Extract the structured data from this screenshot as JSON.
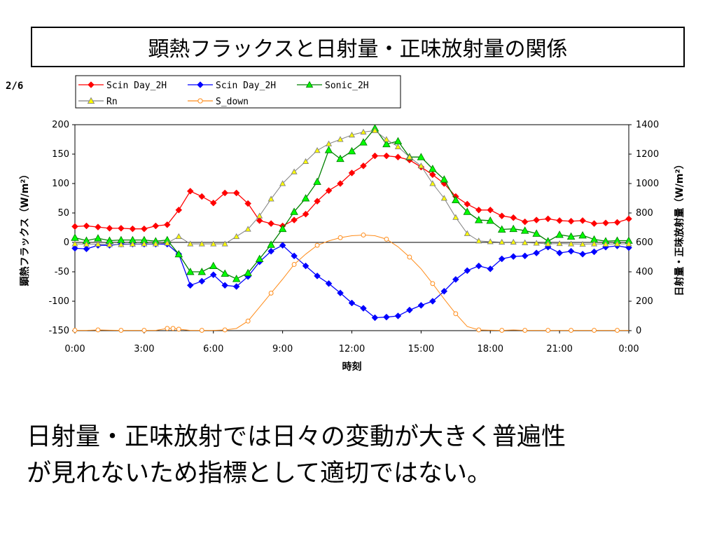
{
  "slide": {
    "title": "顕熱フラックスと日射量・正味放射量の関係",
    "page": "2/6",
    "caption_line1": "日射量・正味放射では日々の変動が大きく普遍性",
    "caption_line2": "が見れないため指標として適切ではない。"
  },
  "chart_data": {
    "type": "line",
    "xlabel": "時刻",
    "ylabel_left": "顕熱フラックス（W/m²）",
    "ylabel_right": "日射量・正味放射量（W/m²）",
    "x_ticks": [
      "0:00",
      "3:00",
      "6:00",
      "9:00",
      "12:00",
      "15:00",
      "18:00",
      "21:00",
      "0:00"
    ],
    "xlim_hours": [
      0,
      24
    ],
    "ylim_left": [
      -150,
      200
    ],
    "yticks_left": [
      200,
      150,
      100,
      50,
      0,
      -50,
      -100,
      -150
    ],
    "ylim_right": [
      0,
      1400
    ],
    "yticks_right": [
      1400,
      1200,
      1000,
      800,
      600,
      400,
      200,
      0
    ],
    "legend_position": "top",
    "series": [
      {
        "name": "Scin Day_2H",
        "axis": "left",
        "color": "#ff0000",
        "marker": "diamond",
        "x": [
          0,
          0.5,
          1,
          1.5,
          2,
          2.5,
          3,
          3.5,
          4,
          4.5,
          5,
          5.5,
          6,
          6.5,
          7,
          7.5,
          8,
          8.5,
          9,
          9.5,
          10,
          10.5,
          11,
          11.5,
          12,
          12.5,
          13,
          13.5,
          14,
          14.5,
          15,
          15.5,
          16,
          16.5,
          17,
          17.5,
          18,
          18.5,
          19,
          19.5,
          20,
          20.5,
          21,
          21.5,
          22,
          22.5,
          23,
          23.5,
          24
        ],
        "y": [
          27,
          28,
          26,
          24,
          24,
          23,
          23,
          28,
          30,
          55,
          87,
          78,
          67,
          84,
          84,
          66,
          37,
          32,
          28,
          38,
          48,
          70,
          88,
          100,
          118,
          130,
          147,
          147,
          145,
          140,
          128,
          115,
          100,
          78,
          65,
          55,
          55,
          45,
          42,
          35,
          38,
          40,
          37,
          36,
          37,
          32,
          33,
          34,
          40
        ]
      },
      {
        "name": "Scin Day_2H",
        "axis": "left",
        "color": "#0000ff",
        "marker": "diamond",
        "x": [
          0,
          0.5,
          1,
          1.5,
          2,
          2.5,
          3,
          3.5,
          4,
          4.5,
          5,
          5.5,
          6,
          6.5,
          7,
          7.5,
          8,
          8.5,
          9,
          9.5,
          10,
          10.5,
          11,
          11.5,
          12,
          12.5,
          13,
          13.5,
          14,
          14.5,
          15,
          15.5,
          16,
          16.5,
          17,
          17.5,
          18,
          18.5,
          19,
          19.5,
          20,
          20.5,
          21,
          21.5,
          22,
          22.5,
          23,
          23.5,
          24
        ],
        "y": [
          -10,
          -11,
          -5,
          -5,
          -3,
          -3,
          -3,
          -3,
          -3,
          -20,
          -73,
          -66,
          -55,
          -73,
          -75,
          -58,
          -33,
          -15,
          -5,
          -23,
          -40,
          -57,
          -70,
          -86,
          -103,
          -112,
          -128,
          -127,
          -125,
          -115,
          -107,
          -100,
          -83,
          -63,
          -48,
          -40,
          -45,
          -28,
          -24,
          -23,
          -18,
          -8,
          -18,
          -15,
          -20,
          -16,
          -8,
          -6,
          -9
        ]
      },
      {
        "name": "Sonic_2H",
        "axis": "left",
        "color": "#008000",
        "fill": "#00ff00",
        "marker": "triangle",
        "x": [
          0,
          0.5,
          1,
          1.5,
          2,
          2.5,
          3,
          3.5,
          4,
          4.5,
          5,
          5.5,
          6,
          6.5,
          7,
          7.5,
          8,
          8.5,
          9,
          9.5,
          10,
          10.5,
          11,
          11.5,
          12,
          12.5,
          13,
          13.5,
          14,
          14.5,
          15,
          15.5,
          16,
          16.5,
          17,
          17.5,
          18,
          18.5,
          19,
          19.5,
          20,
          20.5,
          21,
          21.5,
          22,
          22.5,
          23,
          23.5,
          24
        ],
        "y": [
          8,
          3,
          7,
          3,
          4,
          4,
          4,
          2,
          4,
          -20,
          -50,
          -50,
          -40,
          -53,
          -62,
          -52,
          -28,
          -4,
          23,
          52,
          75,
          103,
          157,
          142,
          155,
          170,
          194,
          167,
          172,
          145,
          145,
          125,
          107,
          72,
          52,
          38,
          37,
          22,
          23,
          20,
          15,
          2,
          13,
          10,
          12,
          5,
          2,
          3,
          3
        ]
      },
      {
        "name": "Rn",
        "axis": "right",
        "color": "#808080",
        "fill": "#ffff00",
        "marker": "triangle",
        "x": [
          0,
          0.5,
          1,
          1.5,
          2,
          2.5,
          3,
          3.5,
          4,
          4.5,
          5,
          5.5,
          6,
          6.5,
          7,
          7.5,
          8,
          8.5,
          9,
          9.5,
          10,
          10.5,
          11,
          11.5,
          12,
          12.5,
          13,
          13.5,
          14,
          14.5,
          15,
          15.5,
          16,
          16.5,
          17,
          17.5,
          18,
          18.5,
          19,
          19.5,
          20,
          20.5,
          21,
          21.5,
          22,
          22.5,
          23,
          23.5,
          24
        ],
        "y": [
          590,
          588,
          588,
          585,
          585,
          588,
          590,
          590,
          595,
          640,
          590,
          590,
          590,
          590,
          640,
          690,
          780,
          895,
          1000,
          1080,
          1150,
          1225,
          1270,
          1300,
          1330,
          1350,
          1360,
          1300,
          1250,
          1180,
          1120,
          1000,
          900,
          770,
          660,
          610,
          605,
          602,
          602,
          598,
          595,
          590,
          592,
          590,
          588,
          590,
          588,
          590,
          590
        ]
      },
      {
        "name": "S_down",
        "axis": "right",
        "color": "#ff8c1a",
        "fill": "#ffffff",
        "marker": "circle",
        "x": [
          0,
          0.5,
          1,
          1.5,
          2,
          2.5,
          3,
          3.5,
          4,
          4.25,
          4.5,
          5,
          5.5,
          6,
          6.5,
          7,
          7.5,
          8,
          8.5,
          9,
          9.5,
          10,
          10.5,
          11,
          11.5,
          12,
          12.5,
          13,
          13.5,
          14,
          14.5,
          15,
          15.5,
          16,
          16.5,
          17,
          17.5,
          18,
          18.5,
          19,
          19.5,
          20,
          20.5,
          21,
          21.5,
          22,
          22.5,
          23,
          23.5,
          24
        ],
        "y": [
          2,
          2,
          5,
          3,
          2,
          2,
          2,
          2,
          15,
          15,
          10,
          2,
          2,
          2,
          5,
          15,
          65,
          160,
          255,
          350,
          450,
          520,
          580,
          610,
          632,
          645,
          650,
          645,
          622,
          570,
          500,
          420,
          320,
          215,
          115,
          28,
          5,
          3,
          2,
          5,
          2,
          2,
          2,
          2,
          2,
          2,
          2,
          2,
          2,
          2
        ]
      }
    ]
  }
}
